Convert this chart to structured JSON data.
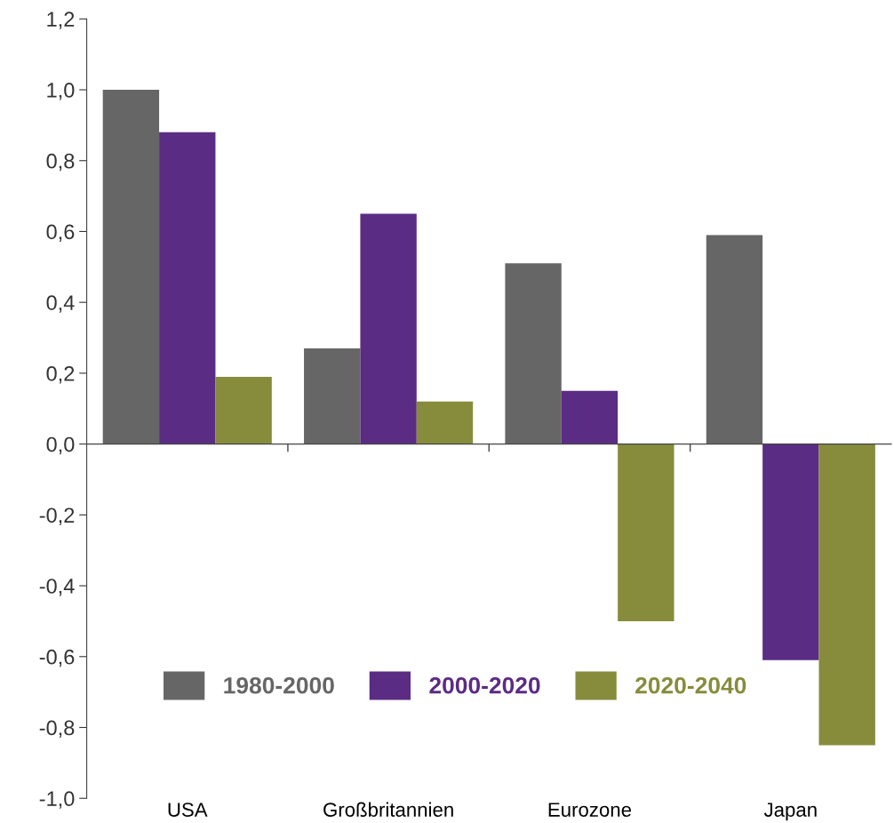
{
  "chart_data": {
    "type": "bar",
    "categories": [
      "USA",
      "Großbritannien",
      "Eurozone",
      "Japan"
    ],
    "series": [
      {
        "name": "1980-2000",
        "color": "#666666",
        "values": [
          1.0,
          0.27,
          0.51,
          0.59
        ]
      },
      {
        "name": "2000-2020",
        "color": "#5b2c83",
        "values": [
          0.88,
          0.65,
          0.15,
          -0.61
        ]
      },
      {
        "name": "2020-2040",
        "color": "#878c3c",
        "values": [
          0.19,
          0.12,
          -0.5,
          -0.85
        ]
      }
    ],
    "ylim": [
      -1.0,
      1.2
    ],
    "yticks": [
      {
        "value": -1.0,
        "label": "-1,0"
      },
      {
        "value": -0.8,
        "label": "-0,8"
      },
      {
        "value": -0.6,
        "label": "-0,6"
      },
      {
        "value": -0.4,
        "label": "-0,4"
      },
      {
        "value": -0.2,
        "label": "-0,2"
      },
      {
        "value": 0.0,
        "label": "0,0"
      },
      {
        "value": 0.2,
        "label": "0,2"
      },
      {
        "value": 0.4,
        "label": "0,4"
      },
      {
        "value": 0.6,
        "label": "0,6"
      },
      {
        "value": 0.8,
        "label": "0,8"
      },
      {
        "value": 1.0,
        "label": "1,0"
      },
      {
        "value": 1.2,
        "label": "1,2"
      }
    ],
    "legend": "bottom left"
  }
}
